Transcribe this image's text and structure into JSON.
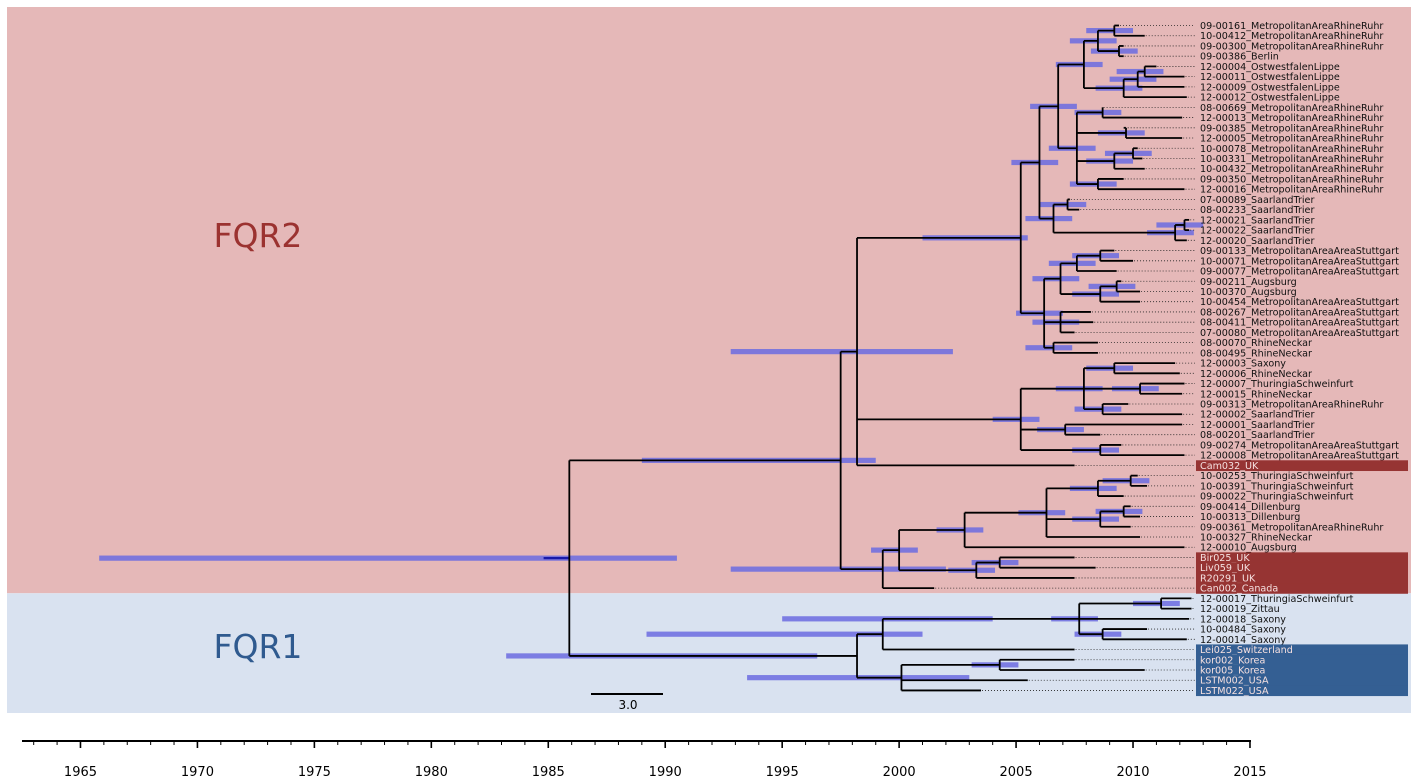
{
  "groups": [
    {
      "id": "fqr2",
      "label": "FQR2",
      "region_color": "#e5b8b8",
      "label_color": "#9b3230",
      "tip_box_color": "#963433"
    },
    {
      "id": "fqr1",
      "label": "FQR1",
      "region_color": "#d9e2f0",
      "label_color": "#2f5a8f",
      "tip_box_color": "#345f93"
    }
  ],
  "colors": {
    "branch": "#000000",
    "hpd_bar": "#6b6be0",
    "highlight_branch": "#1a1aa8",
    "highlight_tip_text": "#f5e0e0"
  },
  "scale_bar_label": "3.0",
  "time_axis": {
    "min": 1962.5,
    "max": 2015,
    "tick_labels": [
      "1965",
      "1970",
      "1975",
      "1980",
      "1985",
      "1990",
      "1995",
      "2000",
      "2005",
      "2010",
      "2015"
    ]
  },
  "tips": [
    {
      "label": "09-00161_MetropolitanAreaRhineRuhr",
      "group": "fqr2",
      "highlight": false
    },
    {
      "label": "10-00412_MetropolitanAreaRhineRuhr",
      "group": "fqr2",
      "highlight": false
    },
    {
      "label": "09-00300_MetropolitanAreaRhineRuhr",
      "group": "fqr2",
      "highlight": false
    },
    {
      "label": "09-00386_Berlin",
      "group": "fqr2",
      "highlight": false
    },
    {
      "label": "12-00004_OstwestfalenLippe",
      "group": "fqr2",
      "highlight": false
    },
    {
      "label": "12-00011_OstwestfalenLippe",
      "group": "fqr2",
      "highlight": false
    },
    {
      "label": "12-00009_OstwestfalenLippe",
      "group": "fqr2",
      "highlight": false
    },
    {
      "label": "12-00012_OstwestfalenLippe",
      "group": "fqr2",
      "highlight": false
    },
    {
      "label": "08-00669_MetropolitanAreaRhineRuhr",
      "group": "fqr2",
      "highlight": false
    },
    {
      "label": "12-00013_MetropolitanAreaRhineRuhr",
      "group": "fqr2",
      "highlight": false
    },
    {
      "label": "09-00385_MetropolitanAreaRhineRuhr",
      "group": "fqr2",
      "highlight": false
    },
    {
      "label": "12-00005_MetropolitanAreaRhineRuhr",
      "group": "fqr2",
      "highlight": false
    },
    {
      "label": "10-00078_MetropolitanAreaRhineRuhr",
      "group": "fqr2",
      "highlight": false
    },
    {
      "label": "10-00331_MetropolitanAreaRhineRuhr",
      "group": "fqr2",
      "highlight": false
    },
    {
      "label": "10-00432_MetropolitanAreaRhineRuhr",
      "group": "fqr2",
      "highlight": false
    },
    {
      "label": "09-00350_MetropolitanAreaRhineRuhr",
      "group": "fqr2",
      "highlight": false
    },
    {
      "label": "12-00016_MetropolitanAreaRhineRuhr",
      "group": "fqr2",
      "highlight": false
    },
    {
      "label": "07-00089_SaarlandTrier",
      "group": "fqr2",
      "highlight": false
    },
    {
      "label": "08-00233_SaarlandTrier",
      "group": "fqr2",
      "highlight": false
    },
    {
      "label": "12-00021_SaarlandTrier",
      "group": "fqr2",
      "highlight": false
    },
    {
      "label": "12-00022_SaarlandTrier",
      "group": "fqr2",
      "highlight": false
    },
    {
      "label": "12-00020_SaarlandTrier",
      "group": "fqr2",
      "highlight": false
    },
    {
      "label": "09-00133_MetropolitanAreaAreaStuttgart",
      "group": "fqr2",
      "highlight": false
    },
    {
      "label": "10-00071_MetropolitanAreaAreaStuttgart",
      "group": "fqr2",
      "highlight": false
    },
    {
      "label": "09-00077_MetropolitanAreaAreaStuttgart",
      "group": "fqr2",
      "highlight": false
    },
    {
      "label": "09-00211_Augsburg",
      "group": "fqr2",
      "highlight": false
    },
    {
      "label": "10-00370_Augsburg",
      "group": "fqr2",
      "highlight": false
    },
    {
      "label": "10-00454_MetropolitanAreaAreaStuttgart",
      "group": "fqr2",
      "highlight": false
    },
    {
      "label": "08-00267_MetropolitanAreaAreaStuttgart",
      "group": "fqr2",
      "highlight": false
    },
    {
      "label": "08-00411_MetropolitanAreaAreaStuttgart",
      "group": "fqr2",
      "highlight": false
    },
    {
      "label": "07-00080_MetropolitanAreaAreaStuttgart",
      "group": "fqr2",
      "highlight": false
    },
    {
      "label": "08-00070_RhineNeckar",
      "group": "fqr2",
      "highlight": false
    },
    {
      "label": "08-00495_RhineNeckar",
      "group": "fqr2",
      "highlight": false
    },
    {
      "label": "12-00003_Saxony",
      "group": "fqr2",
      "highlight": false
    },
    {
      "label": "12-00006_RhineNeckar",
      "group": "fqr2",
      "highlight": false
    },
    {
      "label": "12-00007_ThuringiaSchweinfurt",
      "group": "fqr2",
      "highlight": false
    },
    {
      "label": "12-00015_RhineNeckar",
      "group": "fqr2",
      "highlight": false
    },
    {
      "label": "09-00313_MetropolitanAreaRhineRuhr",
      "group": "fqr2",
      "highlight": false
    },
    {
      "label": "12-00002_SaarlandTrier",
      "group": "fqr2",
      "highlight": false
    },
    {
      "label": "12-00001_SaarlandTrier",
      "group": "fqr2",
      "highlight": false
    },
    {
      "label": "08-00201_SaarlandTrier",
      "group": "fqr2",
      "highlight": false
    },
    {
      "label": "09-00274_MetropolitanAreaAreaStuttgart",
      "group": "fqr2",
      "highlight": false
    },
    {
      "label": "12-00008_MetropolitanAreaAreaStuttgart",
      "group": "fqr2",
      "highlight": false
    },
    {
      "label": "Cam032_UK",
      "group": "fqr2",
      "highlight": true
    },
    {
      "label": "10-00253_ThuringiaSchweinfurt",
      "group": "fqr2",
      "highlight": false
    },
    {
      "label": "10-00391_ThuringiaSchweinfurt",
      "group": "fqr2",
      "highlight": false
    },
    {
      "label": "09-00022_ThuringiaSchweinfurt",
      "group": "fqr2",
      "highlight": false
    },
    {
      "label": "09-00414_Dillenburg",
      "group": "fqr2",
      "highlight": false
    },
    {
      "label": "10-00313_Dillenburg",
      "group": "fqr2",
      "highlight": false
    },
    {
      "label": "09-00361_MetropolitanAreaRhineRuhr",
      "group": "fqr2",
      "highlight": false
    },
    {
      "label": "10-00327_RhineNeckar",
      "group": "fqr2",
      "highlight": false
    },
    {
      "label": "12-00010_Augsburg",
      "group": "fqr2",
      "highlight": false
    },
    {
      "label": "Bir025_UK",
      "group": "fqr2",
      "highlight": true
    },
    {
      "label": "Liv059_UK",
      "group": "fqr2",
      "highlight": true
    },
    {
      "label": "R20291_UK",
      "group": "fqr2",
      "highlight": true
    },
    {
      "label": "Can002_Canada",
      "group": "fqr2",
      "highlight": true
    },
    {
      "label": "12-00017_ThuringiaSchweinfurt",
      "group": "fqr1",
      "highlight": false
    },
    {
      "label": "12-00019_Zittau",
      "group": "fqr1",
      "highlight": false
    },
    {
      "label": "12-00018_Saxony",
      "group": "fqr1",
      "highlight": false
    },
    {
      "label": "10-00484_Saxony",
      "group": "fqr1",
      "highlight": false
    },
    {
      "label": "12-00014_Saxony",
      "group": "fqr1",
      "highlight": false
    },
    {
      "label": "Lei025_Switzerland",
      "group": "fqr1",
      "highlight": true
    },
    {
      "label": "kor002_Korea",
      "group": "fqr1",
      "highlight": true
    },
    {
      "label": "kor005_Korea",
      "group": "fqr1",
      "highlight": true
    },
    {
      "label": "LSTM002_USA",
      "group": "fqr1",
      "highlight": true
    },
    {
      "label": "LSTM022_USA",
      "group": "fqr1",
      "highlight": true
    }
  ]
}
